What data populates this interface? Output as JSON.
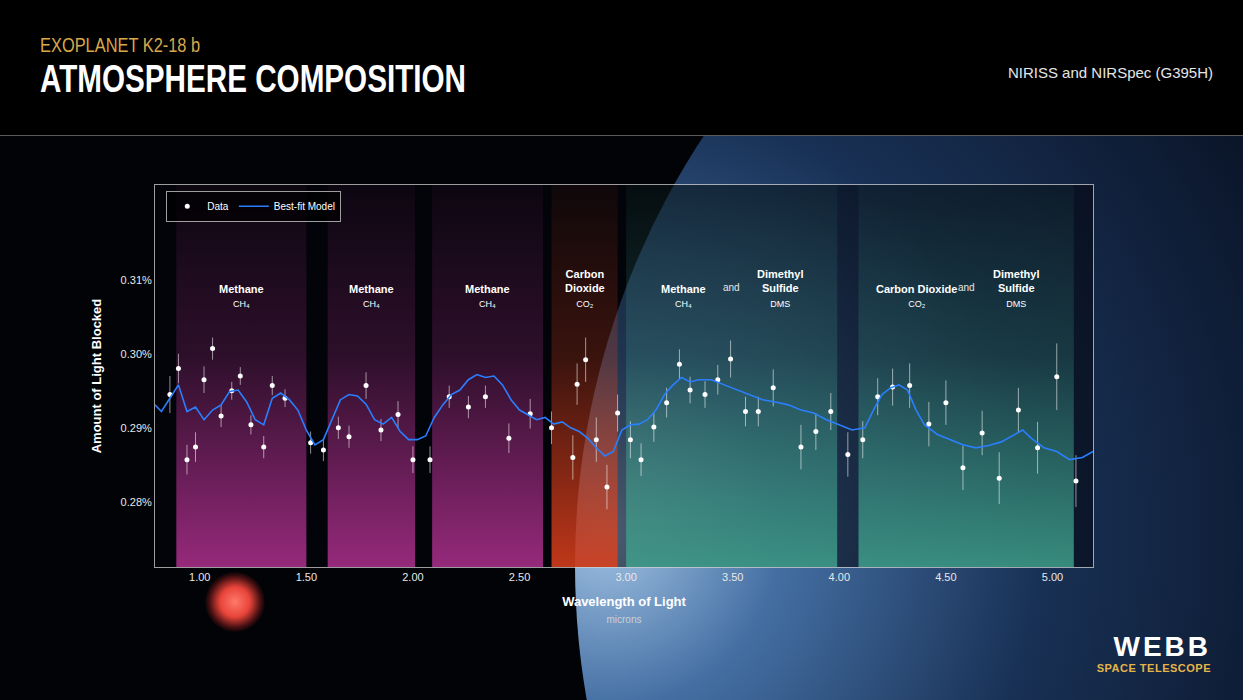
{
  "header": {
    "kicker": "EXOPLANET K2-18 b",
    "title": "ATMOSPHERE COMPOSITION",
    "instruments": "NIRISS and NIRSpec (G395H)"
  },
  "logo": {
    "name": "WEBB",
    "subtitle": "SPACE TELESCOPE"
  },
  "chart_data": {
    "type": "scatter",
    "x_label": "Wavelength of Light",
    "x_unit": "microns",
    "y_label": "Amount of Light Blocked",
    "xlim": [
      0.79,
      5.19
    ],
    "ylim": [
      0.2712,
      0.3228
    ],
    "xticks": [
      {
        "value": 1,
        "label": "1.00"
      },
      {
        "value": 1.5,
        "label": "1.50"
      },
      {
        "value": 2,
        "label": "2.00"
      },
      {
        "value": 2.5,
        "label": "2.50"
      },
      {
        "value": 3,
        "label": "3.00"
      },
      {
        "value": 3.5,
        "label": "3.50"
      },
      {
        "value": 4,
        "label": "4.00"
      },
      {
        "value": 4.5,
        "label": "4.50"
      },
      {
        "value": 5,
        "label": "5.00"
      }
    ],
    "yticks": [
      {
        "value": 0.28,
        "label": "0.28%"
      },
      {
        "value": 0.29,
        "label": "0.29%"
      },
      {
        "value": 0.3,
        "label": "0.30%"
      },
      {
        "value": 0.31,
        "label": "0.31%"
      }
    ],
    "grid": false,
    "legend": "upper left",
    "bands": [
      {
        "x0": 0.89,
        "x1": 1.5,
        "color": "#b0308f",
        "molecules": [
          {
            "name": "Methane",
            "formula": "CH₄"
          }
        ]
      },
      {
        "x0": 1.6,
        "x1": 2.01,
        "color": "#b0308f",
        "molecules": [
          {
            "name": "Methane",
            "formula": "CH₄"
          }
        ]
      },
      {
        "x0": 2.09,
        "x1": 2.61,
        "color": "#b0308f",
        "molecules": [
          {
            "name": "Methane",
            "formula": "CH₄"
          }
        ]
      },
      {
        "x0": 2.65,
        "x1": 2.96,
        "color": "#e0401c",
        "molecules": [
          {
            "name": "Carbon Dioxide",
            "formula": "CO₂"
          }
        ]
      },
      {
        "x0": 3.0,
        "x1": 3.99,
        "color": "#3fa08c",
        "joiner": "and",
        "molecules": [
          {
            "name": "Methane",
            "formula": "CH₄"
          },
          {
            "name": "Dimethyl Sulfide",
            "formula": "DMS"
          }
        ]
      },
      {
        "x0": 4.09,
        "x1": 5.1,
        "color": "#3fa08c",
        "joiner": "and",
        "molecules": [
          {
            "name": "Carbon Dioxide",
            "formula": "CO₂"
          },
          {
            "name": "Dimethyl Sulfide",
            "formula": "DMS"
          }
        ]
      }
    ],
    "series": [
      {
        "name": "Data",
        "type": "scatter",
        "color": "#ffffff",
        "marker": "circle",
        "x": [
          0.86,
          0.9,
          0.94,
          0.98,
          1.02,
          1.06,
          1.1,
          1.15,
          1.19,
          1.24,
          1.3,
          1.34,
          1.4,
          1.52,
          1.58,
          1.65,
          1.7,
          1.78,
          1.85,
          1.93,
          2.0,
          2.08,
          2.17,
          2.26,
          2.34,
          2.45,
          2.55,
          2.65,
          2.75,
          2.77,
          2.81,
          2.86,
          2.91,
          2.96,
          3.02,
          3.07,
          3.13,
          3.19,
          3.25,
          3.3,
          3.37,
          3.43,
          3.49,
          3.56,
          3.62,
          3.69,
          3.82,
          3.89,
          3.96,
          4.04,
          4.11,
          4.18,
          4.25,
          4.33,
          4.42,
          4.5,
          4.58,
          4.67,
          4.75,
          4.84,
          4.93,
          5.02,
          5.11
        ],
        "values": [
          0.2945,
          0.298,
          0.2857,
          0.2874,
          0.2965,
          0.3007,
          0.2916,
          0.295,
          0.297,
          0.2904,
          0.2874,
          0.2957,
          0.294,
          0.288,
          0.287,
          0.29,
          0.2888,
          0.2957,
          0.2897,
          0.2918,
          0.2857,
          0.2857,
          0.2942,
          0.2928,
          0.2942,
          0.2886,
          0.2919,
          0.29,
          0.286,
          0.2959,
          0.2992,
          0.2884,
          0.282,
          0.292,
          0.2884,
          0.2857,
          0.2901,
          0.2934,
          0.2986,
          0.2951,
          0.2945,
          0.2965,
          0.2993,
          0.2922,
          0.2922,
          0.2954,
          0.2874,
          0.2895,
          0.2922,
          0.2864,
          0.2884,
          0.2942,
          0.2955,
          0.2957,
          0.2905,
          0.2934,
          0.2846,
          0.2893,
          0.2832,
          0.2924,
          0.2873,
          0.2969,
          0.2828
        ],
        "error": [
          0.0025,
          0.002,
          0.002,
          0.002,
          0.0018,
          0.0015,
          0.0015,
          0.0012,
          0.0012,
          0.0013,
          0.0015,
          0.0013,
          0.0012,
          0.0015,
          0.0015,
          0.0015,
          0.0015,
          0.0018,
          0.0015,
          0.0018,
          0.0018,
          0.0018,
          0.0015,
          0.0015,
          0.0015,
          0.002,
          0.002,
          0.0022,
          0.003,
          0.0028,
          0.003,
          0.003,
          0.003,
          0.0025,
          0.0025,
          0.0022,
          0.002,
          0.002,
          0.002,
          0.0018,
          0.0018,
          0.002,
          0.0025,
          0.002,
          0.002,
          0.0025,
          0.003,
          0.0025,
          0.0025,
          0.003,
          0.0025,
          0.0025,
          0.0025,
          0.003,
          0.003,
          0.003,
          0.003,
          0.003,
          0.0035,
          0.003,
          0.0035,
          0.0045,
          0.0035
        ]
      },
      {
        "name": "Best-fit Model",
        "type": "line",
        "color": "#2a7fff",
        "line_style": "solid",
        "x": [
          0.79,
          0.82,
          0.86,
          0.9,
          0.94,
          0.98,
          1.02,
          1.06,
          1.1,
          1.14,
          1.18,
          1.22,
          1.26,
          1.3,
          1.34,
          1.38,
          1.42,
          1.46,
          1.5,
          1.54,
          1.58,
          1.62,
          1.66,
          1.7,
          1.74,
          1.78,
          1.82,
          1.86,
          1.9,
          1.94,
          1.98,
          2.02,
          2.06,
          2.1,
          2.14,
          2.18,
          2.22,
          2.26,
          2.3,
          2.34,
          2.38,
          2.42,
          2.46,
          2.5,
          2.54,
          2.58,
          2.62,
          2.66,
          2.7,
          2.74,
          2.78,
          2.82,
          2.86,
          2.9,
          2.94,
          2.98,
          3.02,
          3.06,
          3.1,
          3.14,
          3.18,
          3.22,
          3.26,
          3.3,
          3.34,
          3.4,
          3.46,
          3.52,
          3.58,
          3.64,
          3.7,
          3.76,
          3.82,
          3.88,
          3.94,
          4.0,
          4.06,
          4.12,
          4.16,
          4.2,
          4.24,
          4.28,
          4.32,
          4.36,
          4.4,
          4.46,
          4.52,
          4.58,
          4.64,
          4.7,
          4.76,
          4.82,
          4.86,
          4.9,
          4.96,
          5.02,
          5.08,
          5.14,
          5.19
        ],
        "values": [
          0.2931,
          0.2922,
          0.294,
          0.2958,
          0.2922,
          0.2928,
          0.2911,
          0.2924,
          0.2931,
          0.2949,
          0.2951,
          0.2935,
          0.2911,
          0.2904,
          0.294,
          0.2947,
          0.2938,
          0.2924,
          0.2897,
          0.2877,
          0.2884,
          0.2911,
          0.2938,
          0.2945,
          0.2943,
          0.2932,
          0.2911,
          0.2905,
          0.2914,
          0.2895,
          0.2884,
          0.2884,
          0.2889,
          0.2914,
          0.2931,
          0.2945,
          0.2951,
          0.2965,
          0.2972,
          0.2968,
          0.297,
          0.2958,
          0.2938,
          0.2924,
          0.2918,
          0.2911,
          0.2914,
          0.2905,
          0.2908,
          0.29,
          0.2895,
          0.2886,
          0.2873,
          0.2862,
          0.2868,
          0.2897,
          0.2904,
          0.2905,
          0.2911,
          0.2924,
          0.2945,
          0.2958,
          0.2968,
          0.2962,
          0.2965,
          0.2965,
          0.2958,
          0.2951,
          0.2945,
          0.2938,
          0.2935,
          0.2931,
          0.2924,
          0.292,
          0.2911,
          0.2904,
          0.2897,
          0.29,
          0.2924,
          0.2945,
          0.2954,
          0.2958,
          0.2951,
          0.2924,
          0.2904,
          0.2891,
          0.2884,
          0.2877,
          0.2873,
          0.2876,
          0.2881,
          0.2891,
          0.2897,
          0.2886,
          0.2873,
          0.2868,
          0.2857,
          0.286,
          0.2868
        ]
      }
    ]
  }
}
